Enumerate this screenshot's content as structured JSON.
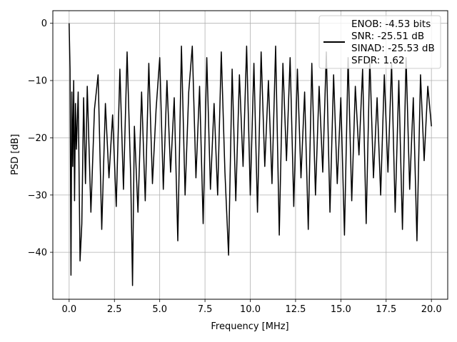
{
  "chart_data": {
    "type": "line",
    "title": "",
    "xlabel": "Frequency [MHz]",
    "ylabel": "PSD [dB]",
    "xlim": [
      -0.9,
      20.9
    ],
    "ylim": [
      -48.2,
      2.2
    ],
    "xticks": [
      0.0,
      2.5,
      5.0,
      7.5,
      10.0,
      12.5,
      15.0,
      17.5,
      20.0
    ],
    "xtick_labels": [
      "0.0",
      "2.5",
      "5.0",
      "7.5",
      "10.0",
      "12.5",
      "15.0",
      "17.5",
      "20.0"
    ],
    "yticks": [
      0,
      -10,
      -20,
      -30,
      -40
    ],
    "ytick_labels": [
      "0",
      "−10",
      "−20",
      "−30",
      "−40"
    ],
    "grid": true,
    "legend_position": "top-right",
    "legend_lines": [
      "ENOB: -4.53 bits",
      "SNR: -25.51 dB",
      "SINAD: -25.53 dB",
      "SFDR: 1.62"
    ],
    "series": [
      {
        "name": "ENOB: -4.53 bits",
        "color": "#000000",
        "x": [
          0.0,
          0.05,
          0.1,
          0.15,
          0.2,
          0.25,
          0.3,
          0.35,
          0.4,
          0.5,
          0.6,
          0.7,
          0.8,
          0.9,
          1.0,
          1.2,
          1.4,
          1.6,
          1.8,
          2.0,
          2.2,
          2.4,
          2.6,
          2.8,
          3.0,
          3.2,
          3.4,
          3.5,
          3.6,
          3.8,
          4.0,
          4.2,
          4.4,
          4.6,
          4.8,
          5.0,
          5.2,
          5.4,
          5.6,
          5.8,
          6.0,
          6.2,
          6.4,
          6.6,
          6.8,
          7.0,
          7.2,
          7.4,
          7.6,
          7.8,
          8.0,
          8.2,
          8.4,
          8.6,
          8.8,
          9.0,
          9.2,
          9.4,
          9.6,
          9.8,
          10.0,
          10.2,
          10.4,
          10.6,
          10.8,
          11.0,
          11.2,
          11.4,
          11.6,
          11.8,
          12.0,
          12.2,
          12.4,
          12.6,
          12.8,
          13.0,
          13.2,
          13.4,
          13.6,
          13.8,
          14.0,
          14.2,
          14.4,
          14.6,
          14.8,
          15.0,
          15.2,
          15.4,
          15.6,
          15.8,
          16.0,
          16.2,
          16.4,
          16.6,
          16.8,
          17.0,
          17.2,
          17.4,
          17.6,
          17.8,
          18.0,
          18.2,
          18.4,
          18.6,
          18.8,
          19.0,
          19.2,
          19.4,
          19.6,
          19.8,
          20.0
        ],
        "y": [
          0.0,
          -8.0,
          -44.0,
          -12.0,
          -25.0,
          -10.0,
          -31.0,
          -14.0,
          -22.0,
          -12.0,
          -41.5,
          -35.0,
          -13.0,
          -28.0,
          -11.0,
          -33.0,
          -15.0,
          -9.0,
          -36.0,
          -14.0,
          -27.0,
          -16.0,
          -32.0,
          -8.0,
          -29.0,
          -5.0,
          -27.0,
          -45.8,
          -18.0,
          -33.0,
          -12.0,
          -31.0,
          -7.0,
          -28.0,
          -15.0,
          -6.0,
          -29.0,
          -10.0,
          -26.0,
          -13.0,
          -38.0,
          -4.0,
          -30.0,
          -12.0,
          -4.0,
          -27.0,
          -11.0,
          -35.0,
          -6.0,
          -29.0,
          -14.0,
          -30.0,
          -5.0,
          -26.0,
          -40.5,
          -8.0,
          -31.0,
          -9.0,
          -25.0,
          -4.0,
          -30.0,
          -7.0,
          -33.0,
          -5.0,
          -25.0,
          -10.0,
          -28.0,
          -4.0,
          -37.0,
          -7.0,
          -24.0,
          -6.0,
          -32.0,
          -8.0,
          -27.0,
          -12.0,
          -36.0,
          -7.0,
          -30.0,
          -11.0,
          -26.0,
          -5.0,
          -33.0,
          -9.0,
          -28.0,
          -13.0,
          -37.0,
          -6.0,
          -31.0,
          -11.0,
          -23.0,
          -8.0,
          -35.0,
          -6.0,
          -27.0,
          -13.0,
          -30.0,
          -9.0,
          -26.0,
          -7.0,
          -33.0,
          -10.0,
          -36.0,
          -6.0,
          -29.0,
          -13.0,
          -38.0,
          -9.0,
          -24.0,
          -11.0,
          -18.0
        ]
      }
    ]
  }
}
